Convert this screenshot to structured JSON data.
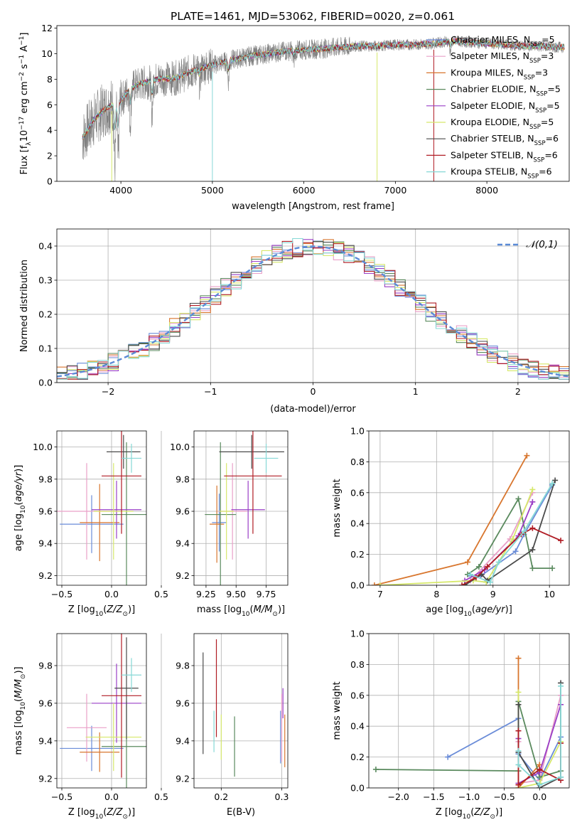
{
  "title": "PLATE=1461, MJD=53062, FIBERID=0020, z=0.061",
  "models": [
    {
      "name": "Chabrier MILES, N_SSP=5",
      "prefix": "Chabrier MILES, N",
      "suffix": "=5",
      "color": "#6a8cd8"
    },
    {
      "name": "Salpeter MILES, N_SSP=3",
      "prefix": "Salpeter MILES, N",
      "suffix": "=3",
      "color": "#e9a0c8"
    },
    {
      "name": "Kroupa MILES, N_SSP=3",
      "prefix": "Kroupa MILES, N",
      "suffix": "=3",
      "color": "#d8762e"
    },
    {
      "name": "Chabrier ELODIE, N_SSP=5",
      "prefix": "Chabrier ELODIE, N",
      "suffix": "=5",
      "color": "#5a8a5e"
    },
    {
      "name": "Salpeter ELODIE, N_SSP=5",
      "prefix": "Salpeter ELODIE, N",
      "suffix": "=5",
      "color": "#9a3fc6"
    },
    {
      "name": "Kroupa ELODIE, N_SSP=5",
      "prefix": "Kroupa ELODIE, N",
      "suffix": "=5",
      "color": "#d6e86a"
    },
    {
      "name": "Chabrier STELIB, N_SSP=6",
      "prefix": "Chabrier STELIB, N",
      "suffix": "=6",
      "color": "#4a4a4a"
    },
    {
      "name": "Salpeter STELIB, N_SSP=6",
      "prefix": "Salpeter STELIB, N",
      "suffix": "=6",
      "color": "#b01c24"
    },
    {
      "name": "Kroupa STELIB, N_SSP=6",
      "prefix": "Kroupa STELIB, N",
      "suffix": "=6",
      "color": "#86d8d6"
    }
  ],
  "legend_subscript": "SSP",
  "chart_data": [
    {
      "id": "spectrum",
      "type": "line",
      "xlabel": "wavelength [Angstrom, rest frame]",
      "ylabel": "Flux [f_λ10^-17 erg cm^-2 s^-1 A^-1]",
      "xlim": [
        3300,
        8900
      ],
      "ylim": [
        0,
        12.2
      ],
      "xticks": [
        4000,
        5000,
        6000,
        7000,
        8000
      ],
      "yticks": [
        0,
        2,
        4,
        6,
        8,
        10,
        12
      ],
      "data_color": "#808080",
      "continuum": [
        [
          3580,
          3.4
        ],
        [
          3700,
          4.8
        ],
        [
          3800,
          5.5
        ],
        [
          3900,
          6.0
        ],
        [
          4000,
          6.3
        ],
        [
          4100,
          7.3
        ],
        [
          4200,
          7.6
        ],
        [
          4400,
          8.0
        ],
        [
          4600,
          8.1
        ],
        [
          4800,
          8.7
        ],
        [
          5000,
          9.1
        ],
        [
          5200,
          9.5
        ],
        [
          5400,
          9.8
        ],
        [
          5600,
          10.0
        ],
        [
          5800,
          10.2
        ],
        [
          6000,
          10.3
        ],
        [
          6200,
          10.4
        ],
        [
          6400,
          10.5
        ],
        [
          6600,
          10.6
        ],
        [
          6800,
          10.6
        ],
        [
          7000,
          10.7
        ],
        [
          7200,
          10.7
        ],
        [
          7400,
          10.8
        ],
        [
          7600,
          11.0
        ],
        [
          7800,
          10.9
        ],
        [
          8000,
          10.8
        ],
        [
          8200,
          10.7
        ],
        [
          8400,
          10.6
        ],
        [
          8600,
          10.6
        ],
        [
          8800,
          10.5
        ]
      ],
      "absorption_lines": [
        [
          3934,
          0.5
        ],
        [
          3969,
          1.5
        ],
        [
          4102,
          5.0
        ],
        [
          4340,
          5.5
        ],
        [
          4861,
          8.0
        ],
        [
          5175,
          7.0
        ],
        [
          5890,
          8.6
        ],
        [
          7600,
          8.5
        ]
      ]
    },
    {
      "id": "residual-hist",
      "type": "area",
      "xlabel": "(data-model)/error",
      "ylabel": "Normed distribution",
      "xlim": [
        -2.5,
        2.5
      ],
      "ylim": [
        0,
        0.45
      ],
      "xticks": [
        -2,
        -1,
        0,
        1,
        2
      ],
      "yticks": [
        0.0,
        0.1,
        0.2,
        0.3,
        0.4
      ],
      "reference": {
        "label": "𝒩(0,1)",
        "mu": 0,
        "sigma": 1
      }
    },
    {
      "id": "age-vs-Z",
      "type": "scatter",
      "xlabel": "Z [log10(Z/Z☉)]",
      "ylabel": "age [log10(age/yr)]",
      "xlim": [
        -0.55,
        0.35
      ],
      "ylim": [
        9.14,
        10.1
      ],
      "xticks": [
        -0.5,
        0.0,
        0.5
      ],
      "yticks": [
        9.2,
        9.4,
        9.6,
        9.8,
        10.0
      ],
      "points": [
        {
          "series": 0,
          "x": -0.2,
          "xerr": 0.32,
          "y": 9.52,
          "yerr": 0.12
        },
        {
          "series": 1,
          "x": -0.25,
          "xerr": 0.35,
          "y": 9.6,
          "yerr": 0.2
        },
        {
          "series": 2,
          "x": -0.12,
          "xerr": 0.2,
          "y": 9.53,
          "yerr": 0.16
        },
        {
          "series": 3,
          "x": 0.15,
          "xerr": 0.25,
          "y": 9.58,
          "yerr": 0.3
        },
        {
          "series": 4,
          "x": 0.05,
          "xerr": 0.25,
          "y": 9.61,
          "yerr": 0.12
        },
        {
          "series": 5,
          "x": 0.02,
          "xerr": 0.2,
          "y": 9.6,
          "yerr": 0.2
        },
        {
          "series": 6,
          "x": 0.12,
          "xerr": 0.17,
          "y": 9.97,
          "yerr": 0.07
        },
        {
          "series": 7,
          "x": 0.1,
          "xerr": 0.2,
          "y": 9.82,
          "yerr": 0.24
        },
        {
          "series": 8,
          "x": 0.2,
          "xerr": 0.1,
          "y": 9.93,
          "yerr": 0.06
        }
      ]
    },
    {
      "id": "age-vs-mass",
      "type": "scatter",
      "xlabel": "mass [log10(M/M☉)]",
      "ylabel": "",
      "xlim": [
        9.15,
        9.93
      ],
      "ylim": [
        9.14,
        10.1
      ],
      "xticks": [
        9.25,
        9.5,
        9.75
      ],
      "yticks": [
        9.2,
        9.4,
        9.6,
        9.8,
        10.0
      ],
      "points": [
        {
          "series": 0,
          "x": 9.36,
          "xerr": 0.06,
          "y": 9.53,
          "yerr": 0.12
        },
        {
          "series": 1,
          "x": 9.47,
          "xerr": 0.12,
          "y": 9.6,
          "yerr": 0.2
        },
        {
          "series": 2,
          "x": 9.34,
          "xerr": 0.06,
          "y": 9.52,
          "yerr": 0.16
        },
        {
          "series": 3,
          "x": 9.37,
          "xerr": 0.13,
          "y": 9.58,
          "yerr": 0.3
        },
        {
          "series": 4,
          "x": 9.6,
          "xerr": 0.14,
          "y": 9.61,
          "yerr": 0.12
        },
        {
          "series": 5,
          "x": 9.42,
          "xerr": 0.06,
          "y": 9.6,
          "yerr": 0.2
        },
        {
          "series": 6,
          "x": 9.63,
          "xerr": 0.27,
          "y": 9.97,
          "yerr": 0.07
        },
        {
          "series": 7,
          "x": 9.64,
          "xerr": 0.24,
          "y": 9.82,
          "yerr": 0.24
        },
        {
          "series": 8,
          "x": 9.75,
          "xerr": 0.1,
          "y": 9.93,
          "yerr": 0.06
        }
      ]
    },
    {
      "id": "massweight-vs-age",
      "type": "line",
      "xlabel": "age [log10(age/yr)]",
      "ylabel": "mass weight",
      "xlim": [
        6.8,
        10.35
      ],
      "ylim": [
        0,
        1.0
      ],
      "xticks": [
        7,
        8,
        9,
        10
      ],
      "yticks": [
        0.0,
        0.2,
        0.4,
        0.6,
        0.8,
        1.0
      ],
      "series": [
        {
          "series": 0,
          "x": [
            8.6,
            8.78,
            9.4,
            9.55,
            10.05
          ],
          "y": [
            0.06,
            0.06,
            0.22,
            0.33,
            0.65
          ]
        },
        {
          "series": 1,
          "x": [
            8.6,
            9.3,
            9.7
          ],
          "y": [
            0.03,
            0.3,
            0.6
          ]
        },
        {
          "series": 2,
          "x": [
            6.9,
            8.55,
            9.6
          ],
          "y": [
            0.0,
            0.15,
            0.84
          ]
        },
        {
          "series": 3,
          "x": [
            8.55,
            8.75,
            9.45,
            9.7,
            10.05
          ],
          "y": [
            0.07,
            0.12,
            0.56,
            0.11,
            0.11
          ]
        },
        {
          "series": 4,
          "x": [
            8.5,
            8.85,
            9.45,
            9.7
          ],
          "y": [
            0.03,
            0.1,
            0.32,
            0.54
          ]
        },
        {
          "series": 5,
          "x": [
            7.0,
            8.65,
            8.88,
            9.35,
            9.7
          ],
          "y": [
            0.0,
            0.03,
            0.02,
            0.3,
            0.62
          ]
        },
        {
          "series": 6,
          "x": [
            8.5,
            8.8,
            8.9,
            9.7,
            10.1
          ],
          "y": [
            0.0,
            0.07,
            0.03,
            0.23,
            0.68
          ]
        },
        {
          "series": 7,
          "x": [
            8.45,
            8.7,
            8.9,
            9.5,
            9.7,
            10.2
          ],
          "y": [
            0.0,
            0.05,
            0.12,
            0.33,
            0.37,
            0.29
          ]
        },
        {
          "series": 8,
          "x": [
            8.6,
            8.95,
            9.1,
            9.55,
            10.05
          ],
          "y": [
            0.07,
            0.02,
            0.15,
            0.35,
            0.66
          ]
        }
      ]
    },
    {
      "id": "mass-vs-Z",
      "type": "scatter",
      "xlabel": "Z [log10(Z/Z☉)]",
      "ylabel": "mass [log10(M/M☉)]",
      "xlim": [
        -0.55,
        0.35
      ],
      "ylim": [
        9.15,
        9.97
      ],
      "xticks": [
        -0.5,
        0.0,
        0.5
      ],
      "yticks": [
        9.2,
        9.4,
        9.6,
        9.8
      ],
      "points": [
        {
          "series": 0,
          "x": -0.2,
          "xerr": 0.32,
          "y": 9.36,
          "yerr": 0.08
        },
        {
          "series": 1,
          "x": -0.25,
          "xerr": 0.2,
          "y": 9.47,
          "yerr": 0.12
        },
        {
          "series": 2,
          "x": -0.12,
          "xerr": 0.2,
          "y": 9.34,
          "yerr": 0.07
        },
        {
          "series": 3,
          "x": 0.15,
          "xerr": 0.25,
          "y": 9.37,
          "yerr": 0.16
        },
        {
          "series": 4,
          "x": 0.05,
          "xerr": 0.25,
          "y": 9.6,
          "yerr": 0.14
        },
        {
          "series": 5,
          "x": 0.02,
          "xerr": 0.28,
          "y": 9.42,
          "yerr": 0.12
        },
        {
          "series": 6,
          "x": 0.15,
          "xerr": 0.12,
          "y": 9.68,
          "yerr": 0.18
        },
        {
          "series": 7,
          "x": 0.1,
          "xerr": 0.2,
          "y": 9.64,
          "yerr": 0.29
        },
        {
          "series": 8,
          "x": 0.2,
          "xerr": 0.1,
          "y": 9.75,
          "yerr": 0.06
        }
      ]
    },
    {
      "id": "mass-vs-EBV",
      "type": "scatter",
      "xlabel": "E(B-V)",
      "ylabel": "",
      "xlim": [
        0.155,
        0.31
      ],
      "ylim": [
        9.15,
        9.97
      ],
      "xticks": [
        0.2,
        0.3
      ],
      "yticks": [
        9.2,
        9.4,
        9.6,
        9.8
      ],
      "points": [
        {
          "series": 0,
          "x": 0.298,
          "y": 9.42,
          "yerr": 0.14
        },
        {
          "series": 1,
          "x": 0.3,
          "y": 9.47,
          "yerr": 0.18
        },
        {
          "series": 2,
          "x": 0.305,
          "y": 9.4,
          "yerr": 0.14
        },
        {
          "series": 3,
          "x": 0.222,
          "y": 9.37,
          "yerr": 0.16
        },
        {
          "series": 4,
          "x": 0.302,
          "y": 9.6,
          "yerr": 0.08
        },
        {
          "series": 5,
          "x": 0.2,
          "y": 9.42,
          "yerr": 0.12
        },
        {
          "series": 6,
          "x": 0.17,
          "y": 9.6,
          "yerr": 0.27
        },
        {
          "series": 7,
          "x": 0.192,
          "y": 9.68,
          "yerr": 0.26
        },
        {
          "series": 8,
          "x": 0.188,
          "y": 9.45,
          "yerr": 0.11
        }
      ]
    },
    {
      "id": "massweight-vs-Z",
      "type": "line",
      "xlabel": "Z [log10(Z/Z☉)]",
      "ylabel": "mass weight",
      "xlim": [
        -2.42,
        0.42
      ],
      "ylim": [
        0,
        1.0
      ],
      "xticks": [
        -2.0,
        -1.5,
        -1.0,
        -0.5,
        0.0
      ],
      "yticks": [
        0.0,
        0.2,
        0.4,
        0.6,
        0.8,
        1.0
      ],
      "series": [
        {
          "series": 0,
          "x": [
            -1.3,
            -0.3,
            -0.3,
            0.0,
            0.3
          ],
          "y": [
            0.2,
            0.45,
            0.22,
            0.05,
            0.33
          ]
        },
        {
          "series": 1,
          "x": [
            -0.3,
            -0.3,
            0.0,
            0.3
          ],
          "y": [
            0.3,
            0.03,
            0.05,
            0.6
          ]
        },
        {
          "series": 2,
          "x": [
            -0.3,
            -0.3,
            0.0
          ],
          "y": [
            0.84,
            0.0,
            0.15
          ]
        },
        {
          "series": 3,
          "x": [
            -2.32,
            -0.3,
            -0.3,
            0.0,
            0.3
          ],
          "y": [
            0.12,
            0.11,
            0.56,
            0.07,
            0.11
          ]
        },
        {
          "series": 4,
          "x": [
            -0.3,
            -0.3,
            0.0,
            0.3
          ],
          "y": [
            0.32,
            0.03,
            0.1,
            0.54
          ]
        },
        {
          "series": 5,
          "x": [
            -0.3,
            -0.3,
            0.0,
            0.3
          ],
          "y": [
            0.62,
            0.0,
            0.03,
            0.3
          ]
        },
        {
          "series": 6,
          "x": [
            -0.3,
            -0.3,
            0.0,
            0.3,
            0.3
          ],
          "y": [
            0.54,
            0.23,
            0.0,
            0.07,
            0.68
          ]
        },
        {
          "series": 7,
          "x": [
            -0.3,
            -0.3,
            0.0,
            0.3,
            0.3
          ],
          "y": [
            0.37,
            0.02,
            0.12,
            0.05,
            0.29
          ]
        },
        {
          "series": 8,
          "x": [
            -0.3,
            -0.3,
            0.0,
            0.3,
            0.3
          ],
          "y": [
            0.24,
            0.15,
            0.02,
            0.07,
            0.66
          ]
        }
      ]
    }
  ]
}
